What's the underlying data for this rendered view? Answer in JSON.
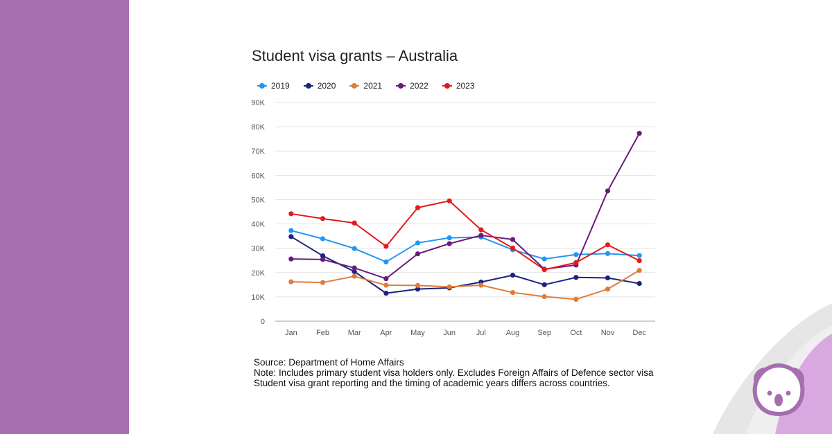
{
  "theme": {
    "sidebar_color": "#a56fae",
    "accent_light": "#d9a8e0",
    "accent_grey": "#e6e6e6",
    "logo_color": "#a56fae"
  },
  "logo": {
    "icon": "koala-icon"
  },
  "chart_data": {
    "type": "line",
    "title": "Student visa grants – Australia",
    "xlabel": "",
    "ylabel": "",
    "categories": [
      "Jan",
      "Feb",
      "Mar",
      "Apr",
      "May",
      "Jun",
      "Jul",
      "Aug",
      "Sep",
      "Oct",
      "Nov",
      "Dec"
    ],
    "ylim": [
      0,
      90000
    ],
    "yticks": [
      0,
      10000,
      20000,
      30000,
      40000,
      50000,
      60000,
      70000,
      80000,
      90000
    ],
    "ytick_labels": [
      "0",
      "10K",
      "20K",
      "30K",
      "40K",
      "50K",
      "60K",
      "70K",
      "80K",
      "90K"
    ],
    "grid": true,
    "legend_position": "top-left",
    "series": [
      {
        "name": "2019",
        "color": "#2196f3",
        "values": [
          37300,
          33900,
          29900,
          24400,
          32200,
          34300,
          34600,
          29400,
          25600,
          27400,
          27800,
          27000
        ]
      },
      {
        "name": "2020",
        "color": "#1a237e",
        "values": [
          34800,
          26900,
          20400,
          11500,
          13200,
          13700,
          16100,
          18900,
          15000,
          18000,
          17800,
          15500
        ]
      },
      {
        "name": "2021",
        "color": "#e07b39",
        "values": [
          16200,
          15900,
          18500,
          14800,
          14700,
          14100,
          14800,
          11800,
          10100,
          9000,
          13200,
          20900
        ]
      },
      {
        "name": "2022",
        "color": "#6a1b7a",
        "values": [
          25600,
          25400,
          21900,
          17500,
          27700,
          31900,
          35300,
          33600,
          21400,
          23100,
          53600,
          77300
        ]
      },
      {
        "name": "2023",
        "color": "#e31a1c",
        "values": [
          44200,
          42200,
          40400,
          30800,
          46700,
          49500,
          37600,
          30100,
          21200,
          24100,
          31400,
          24900
        ]
      }
    ]
  },
  "notes": {
    "source": "Source: Department of Home Affairs",
    "line1": "Note: Includes primary student visa holders only. Excludes Foreign Affairs of Defence sector visa",
    "line2": "Student visa grant reporting and the timing of academic years differs across countries."
  }
}
